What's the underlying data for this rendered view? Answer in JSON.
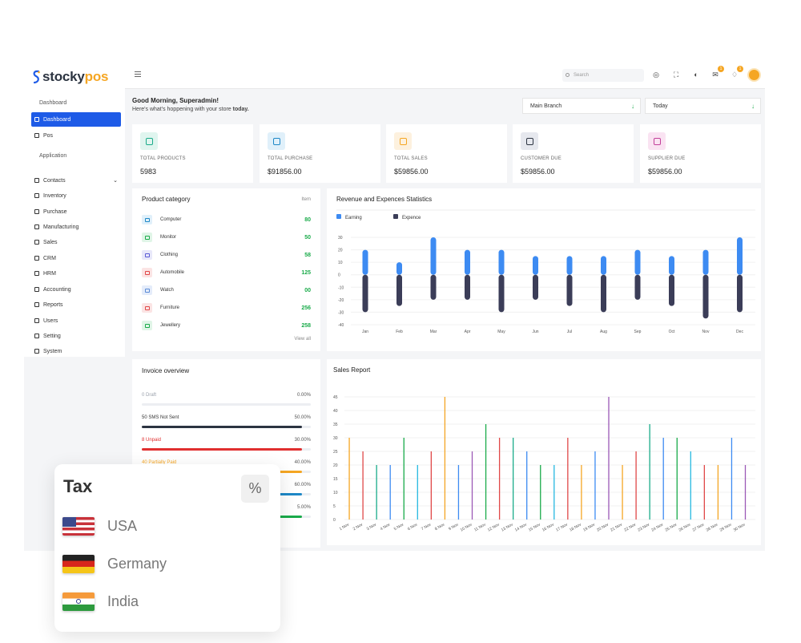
{
  "brand": {
    "name_left": "stocky",
    "name_right": "pos"
  },
  "sidebar": {
    "section_dashboard": "Dashboard",
    "items_top": [
      {
        "label": "Dashboard",
        "icon": "grid-icon",
        "active": true
      },
      {
        "label": "Pos",
        "icon": "register-icon",
        "active": false
      }
    ],
    "section_application": "Application",
    "items_app": [
      {
        "label": "Contacts",
        "icon": "contacts-icon",
        "chevron": "⌄"
      },
      {
        "label": "Inventory",
        "icon": "inventory-icon"
      },
      {
        "label": "Purchase",
        "icon": "purchase-icon"
      },
      {
        "label": "Manufacturing",
        "icon": "manufacturing-icon"
      },
      {
        "label": "Sales",
        "icon": "sales-icon"
      },
      {
        "label": "CRM",
        "icon": "crm-icon"
      },
      {
        "label": "HRM",
        "icon": "hrm-icon"
      },
      {
        "label": "Accounting",
        "icon": "accounting-icon"
      },
      {
        "label": "Reports",
        "icon": "reports-icon"
      },
      {
        "label": "Users",
        "icon": "users-icon"
      },
      {
        "label": "Setting",
        "icon": "gear-icon"
      },
      {
        "label": "System",
        "icon": "system-icon"
      }
    ]
  },
  "topbar": {
    "search_placeholder": "Search",
    "icons": [
      "globe-icon",
      "fullscreen-icon",
      "theme-icon",
      "mail-icon",
      "notification-icon"
    ],
    "badges": {
      "mail": "1",
      "notification": "1"
    }
  },
  "greeting": {
    "title": "Good Morning, Superadmin!",
    "subtitle": "Here's what's hoppening with your store",
    "subtitle_bold": "today."
  },
  "filters": {
    "branch": "Main Branch",
    "period": "Today",
    "arrow": "↓"
  },
  "stats": [
    {
      "label": "TOTAL PRODUCTS",
      "value": "5983",
      "icon": "scan-icon",
      "color": "#1aab8a",
      "bg": "#e0f5ef"
    },
    {
      "label": "TOTAL PURCHASE",
      "value": "$91856.00",
      "icon": "bag-icon",
      "color": "#1e88c7",
      "bg": "#e0f0fa"
    },
    {
      "label": "TOTAL SALES",
      "value": "$59856.00",
      "icon": "cart-icon",
      "color": "#f5a623",
      "bg": "#fdf1de"
    },
    {
      "label": "CUSTOMER DUE",
      "value": "$59856.00",
      "icon": "document-icon",
      "color": "#2c3441",
      "bg": "#e6e8ee"
    },
    {
      "label": "SUPPLIER DUE",
      "value": "$59856.00",
      "icon": "briefcase-icon",
      "color": "#c2409a",
      "bg": "#fae3f2"
    }
  ],
  "product_category": {
    "title": "Product category",
    "column": "Item",
    "view_all": "View all",
    "items": [
      {
        "name": "Computer",
        "count": "80",
        "icon": "computer-icon",
        "color": "#1e88c7",
        "bg": "#e0f0fa"
      },
      {
        "name": "Monitor",
        "count": "50",
        "icon": "monitor-icon",
        "color": "#1aab4a",
        "bg": "#e0f5e7"
      },
      {
        "name": "Clothing",
        "count": "58",
        "icon": "clothing-icon",
        "color": "#5b5bd6",
        "bg": "#e8e8fa"
      },
      {
        "name": "Automobile",
        "count": "125",
        "icon": "car-icon",
        "color": "#e04848",
        "bg": "#fbe4e4"
      },
      {
        "name": "Watch",
        "count": "00",
        "icon": "watch-icon",
        "color": "#5b8bd6",
        "bg": "#e4ecfa"
      },
      {
        "name": "Furniture",
        "count": "256",
        "icon": "sofa-icon",
        "color": "#e04848",
        "bg": "#fbe4e4"
      },
      {
        "name": "Jewellery",
        "count": "258",
        "icon": "diamond-icon",
        "color": "#1aab4a",
        "bg": "#e0f5e7"
      }
    ]
  },
  "invoice": {
    "title": "Invoice overview",
    "rows": [
      {
        "label": "0 Draft",
        "pct": "0.00%",
        "fraction": 0.0,
        "color": "#9aa0ab",
        "text_color": "#9aa0ab"
      },
      {
        "label": "50 SMS Not Sent",
        "pct": "50.00%",
        "fraction": 0.95,
        "color": "#2c3441",
        "text_color": "#333"
      },
      {
        "label": "8 Unpaid",
        "pct": "30.00%",
        "fraction": 0.95,
        "color": "#e02f2f",
        "text_color": "#e02f2f"
      },
      {
        "label": "40 Partially Paid",
        "pct": "40.00%",
        "fraction": 0.95,
        "color": "#f5a623",
        "text_color": "#f5a623"
      },
      {
        "label": "",
        "pct": "60.00%",
        "fraction": 0.95,
        "color": "#1e88c7",
        "text_color": "#333"
      },
      {
        "label": "",
        "pct": "5.00%",
        "fraction": 0.95,
        "color": "#1aab4a",
        "text_color": "#333"
      }
    ]
  },
  "tax": {
    "title": "Tax",
    "symbol": "%",
    "countries": [
      {
        "name": "USA",
        "flag": "usa-flag-icon"
      },
      {
        "name": "Germany",
        "flag": "germany-flag-icon"
      },
      {
        "name": "India",
        "flag": "india-flag-icon"
      }
    ]
  },
  "chart_data": [
    {
      "type": "bar",
      "title": "Revenue and Expences Statistics",
      "categories": [
        "Jan",
        "Feb",
        "Mar",
        "Apr",
        "May",
        "Jun",
        "Jul",
        "Aug",
        "Sep",
        "Oct",
        "Nov",
        "Dec"
      ],
      "series": [
        {
          "name": "Earning",
          "color": "#3d8bf2",
          "values": [
            20,
            10,
            30,
            20,
            20,
            15,
            15,
            15,
            20,
            15,
            20,
            30
          ]
        },
        {
          "name": "Expence",
          "color": "#3b3d58",
          "values": [
            -30,
            -25,
            -20,
            -20,
            -30,
            -20,
            -25,
            -30,
            -20,
            -25,
            -35,
            -30
          ]
        }
      ],
      "ylim": [
        -40,
        30
      ],
      "yticks": [
        30,
        20,
        10,
        0,
        -10,
        -20,
        -30,
        -40
      ],
      "stacked": true,
      "legend": "top-left",
      "grid": true
    },
    {
      "type": "bar",
      "title": "Sales Report",
      "categories": [
        "1 Nov",
        "2 Nov",
        "3 Nov",
        "4 Nov",
        "5 Nov",
        "6 Nov",
        "7 Nov",
        "8 Nov",
        "9 Nov",
        "10 Nov",
        "11 Nov",
        "12 Nov",
        "13 Nov",
        "14 Nov",
        "15 Nov",
        "16 Nov",
        "17 Nov",
        "18 Nov",
        "19 Nov",
        "20 Nov",
        "21 Nov",
        "22 Nov",
        "23 Nov",
        "24 Nov",
        "25 Nov",
        "26 Nov",
        "27 Nov",
        "28 Nov",
        "29 Nov",
        "30 Nov"
      ],
      "values": [
        30,
        25,
        20,
        20,
        30,
        20,
        25,
        45,
        20,
        25,
        35,
        30,
        30,
        25,
        20,
        20,
        30,
        20,
        25,
        45,
        20,
        25,
        35,
        30,
        30,
        25,
        20,
        20,
        30,
        20
      ],
      "colors": [
        "#f5a623",
        "#e04848",
        "#1aab8a",
        "#3d8bf2",
        "#1aab4a",
        "#25b8e0",
        "#e04848",
        "#f5a623",
        "#3d8bf2",
        "#9b59b6",
        "#1aab4a",
        "#e04848",
        "#1aab8a",
        "#3d8bf2",
        "#1aab4a",
        "#25b8e0",
        "#e04848",
        "#f5a623",
        "#3d8bf2",
        "#9b59b6",
        "#f5a623",
        "#e04848",
        "#1aab8a",
        "#3d8bf2",
        "#1aab4a",
        "#25b8e0",
        "#e04848",
        "#f5a623",
        "#3d8bf2",
        "#9b59b6"
      ],
      "ylim": [
        0,
        45
      ],
      "yticks": [
        45,
        40,
        35,
        30,
        25,
        20,
        15,
        10,
        5,
        0
      ],
      "grid": true
    }
  ]
}
